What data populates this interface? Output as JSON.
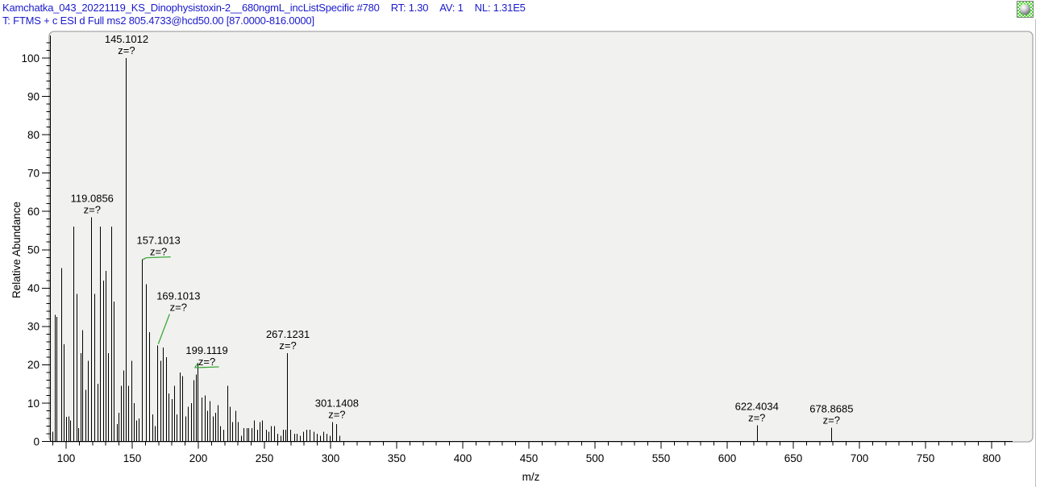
{
  "header": {
    "line1_parts": [
      "Kamchatka_043_20221119_KS_Dinophysistoxin-2__680ngmL_incListSpecific #780",
      "RT: 1.30",
      "AV: 1",
      "NL: 1.31E5"
    ],
    "line2": "T: FTMS + c ESI d Full ms2 805.4733@hcd50.00 [87.0000-816.0000]"
  },
  "toolbar": {
    "apply_icon": "green-checker-sphere-icon"
  },
  "colors": {
    "header_text": "#1a1acc",
    "peak_line": "#000000",
    "annotation_mark_green": "#3aa93a",
    "plot_background": "#f1f1ef",
    "frame_border": "#a6a6a6"
  },
  "chart_data": {
    "type": "bar",
    "subtype": "mass-spectrum-stick-plot",
    "title": "",
    "xlabel": "m/z",
    "ylabel": "Relative Abundance",
    "xlim": [
      87,
      816
    ],
    "ylim": [
      0,
      100
    ],
    "grid": false,
    "x_major_tick_step": 50,
    "x_minor_tick_step": 10,
    "y_major_tick_step": 10,
    "y_minor_tick_step": 2,
    "x_tick_labels": [
      100,
      150,
      200,
      250,
      300,
      350,
      400,
      450,
      500,
      550,
      600,
      650,
      700,
      750,
      800
    ],
    "y_tick_labels": [
      0,
      10,
      20,
      30,
      40,
      50,
      60,
      70,
      80,
      90,
      100
    ],
    "peaks": [
      [
        89.5,
        2.5
      ],
      [
        91.7,
        33
      ],
      [
        92.9,
        32.5
      ],
      [
        96.2,
        45.2
      ],
      [
        98.4,
        25.3
      ],
      [
        100.2,
        6.4
      ],
      [
        101.6,
        6.5
      ],
      [
        102.9,
        5.5
      ],
      [
        105.7,
        56
      ],
      [
        107.7,
        38.5
      ],
      [
        109.1,
        3.5
      ],
      [
        110.8,
        23
      ],
      [
        112.4,
        29
      ],
      [
        114.6,
        13.5
      ],
      [
        116.5,
        21
      ],
      [
        119.0856,
        58.5
      ],
      [
        121.3,
        38.5
      ],
      [
        123.6,
        15
      ],
      [
        125.6,
        56
      ],
      [
        127.9,
        42
      ],
      [
        129.9,
        44.5
      ],
      [
        131.7,
        23
      ],
      [
        134.0,
        56
      ],
      [
        136.2,
        36.5
      ],
      [
        138.2,
        4.5
      ],
      [
        139.5,
        7.5
      ],
      [
        141.3,
        14.5
      ],
      [
        143.1,
        18.5
      ],
      [
        145.1012,
        100
      ],
      [
        147.0,
        14.5
      ],
      [
        149.2,
        21
      ],
      [
        151.2,
        10
      ],
      [
        153.2,
        5.5
      ],
      [
        154.9,
        6
      ],
      [
        157.1013,
        47.5
      ],
      [
        160.4,
        41
      ],
      [
        162.6,
        28.5
      ],
      [
        165.2,
        7
      ],
      [
        166.8,
        4
      ],
      [
        169.1013,
        25
      ],
      [
        171.3,
        21
      ],
      [
        173.4,
        24.5
      ],
      [
        175.6,
        22
      ],
      [
        177.6,
        12.5
      ],
      [
        179.7,
        11
      ],
      [
        181.5,
        14.5
      ],
      [
        183.5,
        7
      ],
      [
        185.8,
        18
      ],
      [
        187.8,
        17
      ],
      [
        190.2,
        6.5
      ],
      [
        192.3,
        9
      ],
      [
        194.3,
        10
      ],
      [
        196.5,
        16
      ],
      [
        197.9,
        17.5
      ],
      [
        199.1119,
        20.5
      ],
      [
        202.6,
        11.5
      ],
      [
        204.7,
        12
      ],
      [
        206.7,
        8
      ],
      [
        208.5,
        10.5
      ],
      [
        210.8,
        6.5
      ],
      [
        212.6,
        7.5
      ],
      [
        214.6,
        9.5
      ],
      [
        216.5,
        4
      ],
      [
        218.7,
        3
      ],
      [
        222.0,
        14.5
      ],
      [
        224.0,
        9
      ],
      [
        225.8,
        5
      ],
      [
        228.0,
        8
      ],
      [
        230.0,
        5
      ],
      [
        232.1,
        1.5
      ],
      [
        234.1,
        3.5
      ],
      [
        236.4,
        3.5
      ],
      [
        238.0,
        3.5
      ],
      [
        240.2,
        3.5
      ],
      [
        242.2,
        5.5
      ],
      [
        244.3,
        3
      ],
      [
        246.2,
        5
      ],
      [
        248.4,
        5.5
      ],
      [
        251.0,
        3
      ],
      [
        253.0,
        2.5
      ],
      [
        255.1,
        4
      ],
      [
        257.5,
        4
      ],
      [
        259.6,
        2
      ],
      [
        262.2,
        1.5
      ],
      [
        264.2,
        3
      ],
      [
        265.7,
        3
      ],
      [
        267.1231,
        23
      ],
      [
        269.7,
        3
      ],
      [
        272.4,
        2
      ],
      [
        274.4,
        2
      ],
      [
        276.8,
        1.5
      ],
      [
        279.5,
        2.5
      ],
      [
        281.9,
        3
      ],
      [
        284.3,
        3
      ],
      [
        287.0,
        2.5
      ],
      [
        289.6,
        2
      ],
      [
        292.1,
        1.5
      ],
      [
        294.5,
        2.5
      ],
      [
        296.9,
        2
      ],
      [
        299.4,
        1.5
      ],
      [
        301.1408,
        5
      ],
      [
        304.3,
        4.5
      ],
      [
        306.7,
        1.5
      ],
      [
        622.4034,
        4.2
      ],
      [
        678.8685,
        3.6
      ]
    ],
    "annotations": [
      {
        "mz": 119.0856,
        "label": "119.0856",
        "z": "z=?",
        "dx": 1,
        "mark": "none"
      },
      {
        "mz": 145.1012,
        "label": "145.1012",
        "z": "z=?",
        "dx": 1,
        "mark": "none"
      },
      {
        "mz": 157.1013,
        "label": "157.1013",
        "z": "z=?",
        "dx": 21,
        "mark": "underline"
      },
      {
        "mz": 169.1013,
        "label": "169.1013",
        "z": "z=?",
        "dx": 26,
        "lift": 38,
        "mark": "connector"
      },
      {
        "mz": 199.1119,
        "label": "199.1119",
        "z": "z=?",
        "dx": 12,
        "drop": 8,
        "mark": "underline"
      },
      {
        "mz": 267.1231,
        "label": "267.1231",
        "z": "z=?",
        "dx": 1,
        "mark": "none"
      },
      {
        "mz": 301.1408,
        "label": "301.1408",
        "z": "z=?",
        "dx": 6,
        "mark": "none"
      },
      {
        "mz": 622.4034,
        "label": "622.4034",
        "z": "z=?",
        "dx": 0,
        "mark": "none"
      },
      {
        "mz": 678.8685,
        "label": "678.8685",
        "z": "z=?",
        "dx": 0,
        "mark": "none"
      }
    ]
  }
}
